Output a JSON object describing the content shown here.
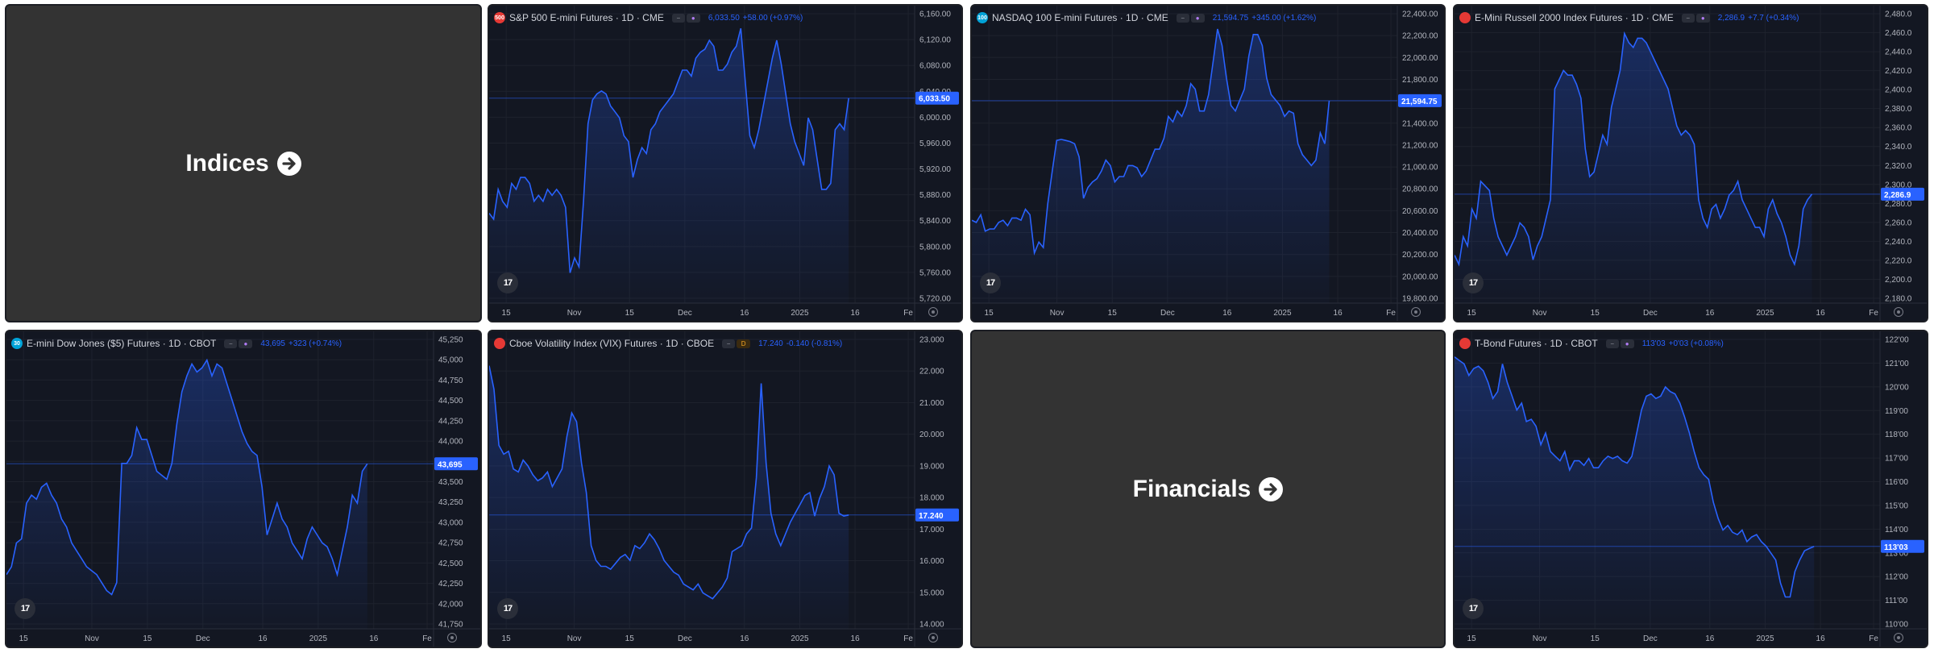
{
  "category_tiles": [
    {
      "label": "Indices"
    },
    {
      "label": "Financials"
    }
  ],
  "colors": {
    "background": "#131722",
    "line": "#2962ff",
    "grid": "#1e222d",
    "axis_text": "#b2b5be",
    "category_bg": "#333333"
  },
  "charts": [
    {
      "symbol": "S&P 500 E-mini Futures · 1D · CME",
      "flag": "500",
      "flag_color": "#e53935",
      "pills": [
        "a",
        "b"
      ],
      "price": "6,033.50",
      "change": "+58.00 (+0.97%)",
      "price_tag": "6,033.50",
      "y_ticks": [
        "6,160.00",
        "6,120.00",
        "6,080.00",
        "6,040.00",
        "6,000.00",
        "5,960.00",
        "5,920.00",
        "5,880.00",
        "5,840.00",
        "5,800.00",
        "5,760.00",
        "5,720.00"
      ],
      "x_ticks": [
        "15",
        "Nov",
        "15",
        "Dec",
        "16",
        "2025",
        "16",
        "Fe"
      ]
    },
    {
      "symbol": "NASDAQ 100 E-mini Futures · 1D · CME",
      "flag": "100",
      "flag_color": "#00a3d8",
      "pills": [
        "a",
        "b"
      ],
      "price": "21,594.75",
      "change": "+345.00 (+1.62%)",
      "price_tag": "21,594.75",
      "y_ticks": [
        "22,400.00",
        "22,200.00",
        "22,000.00",
        "21,800.00",
        "21,600.00",
        "21,400.00",
        "21,200.00",
        "21,000.00",
        "20,800.00",
        "20,600.00",
        "20,400.00",
        "20,200.00",
        "20,000.00",
        "19,800.00"
      ],
      "x_ticks": [
        "15",
        "Nov",
        "15",
        "Dec",
        "16",
        "2025",
        "16",
        "Fe"
      ]
    },
    {
      "symbol": "E-Mini Russell 2000 Index Futures · 1D · CME",
      "flag": "",
      "flag_color": "#e53935",
      "pills": [
        "a",
        "b"
      ],
      "price": "2,286.9",
      "change": "+7.7 (+0.34%)",
      "price_tag": "2,286.9",
      "y_ticks": [
        "2,480.0",
        "2,460.0",
        "2,440.0",
        "2,420.0",
        "2,400.0",
        "2,380.0",
        "2,360.0",
        "2,340.0",
        "2,320.0",
        "2,300.0",
        "2,280.0",
        "2,260.0",
        "2,240.0",
        "2,220.0",
        "2,200.0",
        "2,180.0"
      ],
      "x_ticks": [
        "15",
        "Nov",
        "15",
        "Dec",
        "16",
        "2025",
        "16",
        "Fe"
      ]
    },
    {
      "symbol": "E-mini Dow Jones ($5) Futures · 1D · CBOT",
      "flag": "30",
      "flag_color": "#00a3d8",
      "pills": [
        "a",
        "b"
      ],
      "price": "43,695",
      "change": "+323 (+0.74%)",
      "price_tag": "43,695",
      "y_ticks": [
        "45,250",
        "45,000",
        "44,750",
        "44,500",
        "44,250",
        "44,000",
        "43,750",
        "43,500",
        "43,250",
        "43,000",
        "42,750",
        "42,500",
        "42,250",
        "42,000",
        "41,750"
      ],
      "x_ticks": [
        "15",
        "Nov",
        "15",
        "Dec",
        "16",
        "2025",
        "16",
        "Fe"
      ]
    },
    {
      "symbol": "Cboe Volatility Index (VIX) Futures · 1D · CBOE",
      "flag": "",
      "flag_color": "#e53935",
      "pills": [
        "a",
        "d"
      ],
      "price": "17.240",
      "change": "-0.140 (-0.81%)",
      "price_tag": "17.240",
      "y_ticks": [
        "23.000",
        "22.000",
        "21.000",
        "20.000",
        "19.000",
        "18.000",
        "17.000",
        "16.000",
        "15.000",
        "14.000"
      ],
      "x_ticks": [
        "15",
        "Nov",
        "15",
        "Dec",
        "16",
        "2025",
        "16",
        "Fe"
      ]
    },
    {
      "symbol": "T-Bond Futures · 1D · CBOT",
      "flag": "",
      "flag_color": "#e53935",
      "pills": [
        "a",
        "b"
      ],
      "price": "113'03",
      "change": "+0'03 (+0.08%)",
      "price_tag": "113'03",
      "y_ticks": [
        "122'00",
        "121'00",
        "120'00",
        "119'00",
        "118'00",
        "117'00",
        "116'00",
        "115'00",
        "114'00",
        "113'00",
        "112'00",
        "111'00",
        "110'00"
      ],
      "x_ticks": [
        "15",
        "Nov",
        "15",
        "Dec",
        "16",
        "2025",
        "16",
        "Fe"
      ]
    }
  ],
  "chart_data": [
    {
      "type": "area",
      "title": "S&P 500 E-mini Futures · 1D · CME",
      "ylim": [
        5700,
        6180
      ],
      "values": [
        5840,
        5830,
        5880,
        5860,
        5850,
        5890,
        5880,
        5900,
        5900,
        5890,
        5860,
        5870,
        5860,
        5880,
        5870,
        5880,
        5870,
        5850,
        5740,
        5765,
        5750,
        5860,
        5990,
        6030,
        6040,
        6045,
        6040,
        6020,
        6010,
        6000,
        5970,
        5960,
        5900,
        5930,
        5950,
        5940,
        5980,
        5990,
        6010,
        6020,
        6030,
        6040,
        6060,
        6080,
        6080,
        6070,
        6100,
        6110,
        6115,
        6130,
        6120,
        6080,
        6080,
        6090,
        6110,
        6120,
        6150,
        6060,
        5970,
        5950,
        5980,
        6020,
        6060,
        6100,
        6130,
        6090,
        6040,
        5990,
        5960,
        5940,
        5920,
        6000,
        5980,
        5930,
        5880,
        5880,
        5890,
        5980,
        5990,
        5980,
        6033
      ]
    },
    {
      "type": "area",
      "title": "NASDAQ 100 E-mini Futures · 1D · CME",
      "ylim": [
        19800,
        22420
      ],
      "values": [
        20500,
        20480,
        20550,
        20400,
        20420,
        20420,
        20480,
        20500,
        20450,
        20520,
        20520,
        20500,
        20600,
        20550,
        20200,
        20300,
        20250,
        20650,
        20950,
        21230,
        21240,
        21230,
        21220,
        21200,
        21080,
        20700,
        20800,
        20850,
        20880,
        20950,
        21050,
        21000,
        20850,
        20900,
        20900,
        21000,
        21000,
        20980,
        20900,
        20950,
        21050,
        21150,
        21150,
        21250,
        21450,
        21400,
        21500,
        21450,
        21550,
        21750,
        21700,
        21500,
        21500,
        21650,
        21950,
        22250,
        22100,
        21800,
        21550,
        21500,
        21600,
        21700,
        22000,
        22200,
        22200,
        22100,
        21800,
        21650,
        21600,
        21550,
        21450,
        21500,
        21480,
        21200,
        21100,
        21050,
        21000,
        21050,
        21300,
        21200,
        21594
      ]
    },
    {
      "type": "area",
      "title": "E-Mini Russell 2000 Index Futures · 1D · CME",
      "ylim": [
        2175,
        2485
      ],
      "values": [
        2220,
        2210,
        2240,
        2230,
        2270,
        2260,
        2300,
        2295,
        2290,
        2260,
        2240,
        2230,
        2220,
        2230,
        2240,
        2255,
        2250,
        2240,
        2215,
        2230,
        2240,
        2260,
        2280,
        2400,
        2410,
        2420,
        2415,
        2415,
        2405,
        2390,
        2335,
        2305,
        2310,
        2330,
        2350,
        2340,
        2380,
        2400,
        2420,
        2460,
        2450,
        2445,
        2455,
        2455,
        2450,
        2440,
        2430,
        2420,
        2410,
        2400,
        2380,
        2360,
        2350,
        2355,
        2350,
        2340,
        2280,
        2260,
        2250,
        2270,
        2275,
        2260,
        2270,
        2285,
        2290,
        2300,
        2280,
        2270,
        2260,
        2250,
        2250,
        2240,
        2270,
        2280,
        2265,
        2255,
        2240,
        2220,
        2210,
        2230,
        2270,
        2280,
        2286
      ]
    },
    {
      "type": "area",
      "title": "E-mini Dow Jones ($5) Futures · 1D · CBOT",
      "ylim": [
        41700,
        45300
      ],
      "values": [
        42300,
        42400,
        42700,
        42750,
        43200,
        43300,
        43250,
        43400,
        43450,
        43300,
        43200,
        43000,
        42900,
        42700,
        42600,
        42500,
        42400,
        42350,
        42300,
        42200,
        42100,
        42050,
        42200,
        43700,
        43700,
        43800,
        44150,
        44000,
        44000,
        43800,
        43600,
        43550,
        43500,
        43700,
        44200,
        44600,
        44800,
        44950,
        44850,
        44900,
        45000,
        44800,
        44950,
        44900,
        44700,
        44500,
        44300,
        44100,
        43950,
        43850,
        43800,
        43400,
        42800,
        43000,
        43200,
        43000,
        42900,
        42700,
        42600,
        42500,
        42750,
        42900,
        42800,
        42700,
        42650,
        42500,
        42300,
        42600,
        42900,
        43300,
        43200,
        43600,
        43695
      ]
    },
    {
      "type": "area",
      "title": "Cboe Volatility Index (VIX) Futures · 1D · CBOE",
      "ylim": [
        13600,
        23300
      ],
      "values": [
        22300,
        21500,
        19600,
        19300,
        19400,
        18800,
        18700,
        19100,
        18900,
        18600,
        18400,
        18500,
        18700,
        18200,
        18500,
        18800,
        19900,
        20700,
        20400,
        19000,
        18000,
        16200,
        15700,
        15500,
        15500,
        15400,
        15600,
        15800,
        15900,
        15700,
        16200,
        16100,
        16300,
        16600,
        16400,
        16100,
        15700,
        15500,
        15300,
        15200,
        14900,
        14800,
        14700,
        14900,
        14600,
        14500,
        14400,
        14600,
        14800,
        15100,
        16000,
        16100,
        16200,
        16600,
        16800,
        18500,
        21700,
        19000,
        17300,
        16600,
        16200,
        16600,
        17000,
        17300,
        17600,
        17900,
        18000,
        17200,
        17800,
        18200,
        18900,
        18600,
        17300,
        17200,
        17240
      ]
    },
    {
      "type": "area",
      "title": "T-Bond Futures · 1D · CBOT",
      "ylim": [
        109.8,
        122.2
      ],
      "values": [
        121.3,
        121.15,
        121.0,
        120.5,
        120.8,
        120.9,
        120.7,
        120.2,
        119.5,
        119.8,
        121.0,
        120.2,
        119.6,
        119.0,
        119.3,
        118.5,
        118.6,
        118.3,
        117.5,
        118.0,
        117.2,
        117.0,
        116.8,
        117.2,
        116.4,
        116.8,
        116.8,
        116.6,
        116.9,
        116.5,
        116.5,
        116.8,
        117.0,
        116.9,
        117.0,
        116.8,
        116.7,
        117.0,
        118.0,
        119.0,
        119.6,
        119.7,
        119.5,
        119.6,
        120.0,
        119.8,
        119.7,
        119.3,
        118.7,
        118.0,
        117.2,
        116.5,
        116.2,
        116.0,
        115.0,
        114.3,
        113.8,
        114.0,
        113.7,
        113.6,
        113.8,
        113.3,
        113.5,
        113.6,
        113.3,
        113.1,
        112.8,
        112.5,
        111.5,
        110.9,
        110.9,
        112.0,
        112.5,
        112.9,
        113.0,
        113.09
      ]
    }
  ]
}
